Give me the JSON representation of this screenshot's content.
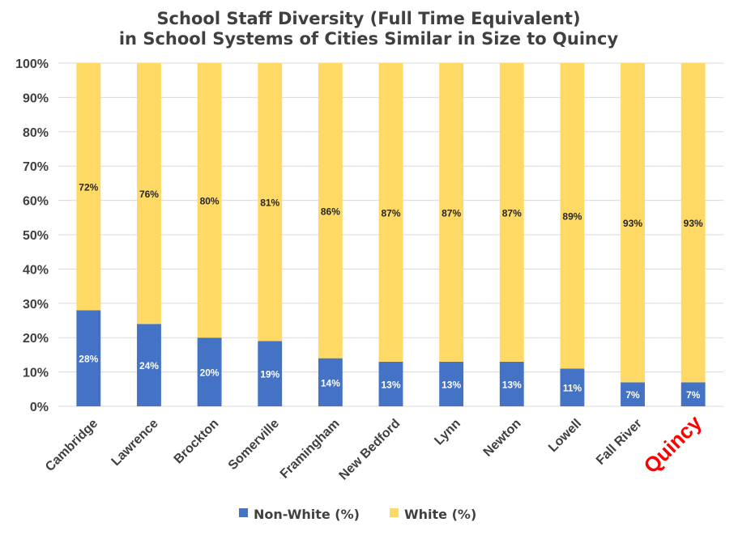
{
  "chart_data": {
    "type": "bar",
    "stacked": true,
    "title_lines": [
      "School Staff Diversity (Full Time Equivalent)",
      "in School Systems of Cities Similar in Size to Quincy"
    ],
    "categories": [
      "Cambridge",
      "Lawrence",
      "Brockton",
      "Somerville",
      "Framingham",
      "New Bedford",
      "Lynn",
      "Newton",
      "Lowell",
      "Fall River",
      "Quincy"
    ],
    "highlight_category": "Quincy",
    "series": [
      {
        "name": "Non-White (%)",
        "color": "#4472c4",
        "values": [
          28,
          24,
          20,
          19,
          14,
          13,
          13,
          13,
          11,
          7,
          7
        ],
        "labels": [
          "28%",
          "24%",
          "20%",
          "19%",
          "14%",
          "13%",
          "13%",
          "13%",
          "11%",
          "7%",
          "7%"
        ]
      },
      {
        "name": "White (%)",
        "color": "#ffd966",
        "values": [
          72,
          76,
          80,
          81,
          86,
          87,
          87,
          87,
          89,
          93,
          93
        ],
        "labels": [
          "72%",
          "76%",
          "80%",
          "81%",
          "86%",
          "87%",
          "87%",
          "87%",
          "89%",
          "93%",
          "93%"
        ]
      }
    ],
    "yticks": [
      "0%",
      "10%",
      "20%",
      "30%",
      "40%",
      "50%",
      "60%",
      "70%",
      "80%",
      "90%",
      "100%"
    ],
    "ylim": [
      0,
      100
    ],
    "grid": true,
    "legend_position": "bottom",
    "colors": {
      "highlight": "#ff0000",
      "grid": "#d9d9d9",
      "text": "#404040"
    }
  }
}
